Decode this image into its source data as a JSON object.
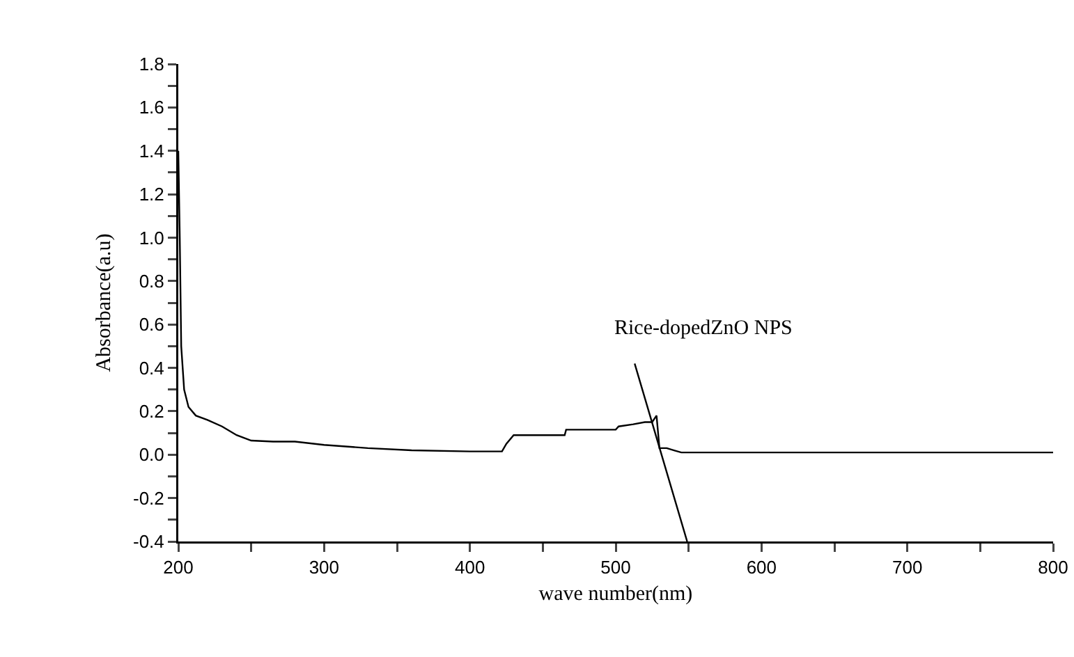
{
  "chart_data": {
    "type": "line",
    "xlabel": "wave number(nm)",
    "ylabel": "Absorbance(a.u)",
    "annotations": [
      "Rice-dopedZnO NPS"
    ],
    "x": [
      200,
      201,
      202,
      204,
      207,
      212,
      220,
      230,
      240,
      250,
      265,
      280,
      300,
      330,
      360,
      400,
      422,
      425,
      430,
      465,
      466,
      500,
      502,
      512,
      520,
      525,
      528,
      530,
      535,
      540,
      545,
      560,
      800
    ],
    "series": [
      {
        "color": "#000000",
        "values": [
          1.4,
          1.0,
          0.5,
          0.3,
          0.22,
          0.18,
          0.16,
          0.13,
          0.09,
          0.065,
          0.06,
          0.06,
          0.045,
          0.03,
          0.02,
          0.015,
          0.015,
          0.05,
          0.09,
          0.09,
          0.115,
          0.115,
          0.13,
          0.14,
          0.15,
          0.15,
          0.18,
          0.03,
          0.03,
          0.02,
          0.01,
          0.01,
          0.01
        ]
      },
      {
        "type": "line",
        "color": "#000000",
        "x": [
          513,
          549
        ],
        "values": [
          0.42,
          -0.4
        ]
      }
    ],
    "xlim": [
      200,
      800
    ],
    "ylim": [
      -0.4,
      1.8
    ],
    "xticks": [
      200,
      {
        "value": 250,
        "label": null
      },
      300,
      {
        "value": 350,
        "label": null
      },
      400,
      {
        "value": 450,
        "label": null
      },
      500,
      {
        "value": 550,
        "label": null
      },
      600,
      {
        "value": 650,
        "label": null
      },
      700,
      {
        "value": 750,
        "label": null
      },
      800
    ],
    "yticks": [
      -0.4,
      {
        "value": -0.3,
        "label": null
      },
      -0.2,
      {
        "value": -0.1,
        "label": null
      },
      {
        "value": 0,
        "label": "0.0"
      },
      {
        "value": 0.1,
        "label": null
      },
      0.2,
      {
        "value": 0.3,
        "label": null
      },
      0.4,
      {
        "value": 0.5,
        "label": null
      },
      0.6,
      {
        "value": 0.7,
        "label": null
      },
      0.8,
      {
        "value": 0.9,
        "label": null
      },
      {
        "value": 1,
        "label": "1.0"
      },
      {
        "value": 1.1,
        "label": null
      },
      1.2,
      {
        "value": 1.3,
        "label": null
      },
      1.4,
      {
        "value": 1.5,
        "label": null
      },
      1.6,
      {
        "value": 1.7,
        "label": null
      },
      1.8
    ],
    "grid": false,
    "marker": "none",
    "line_style": "solid"
  }
}
